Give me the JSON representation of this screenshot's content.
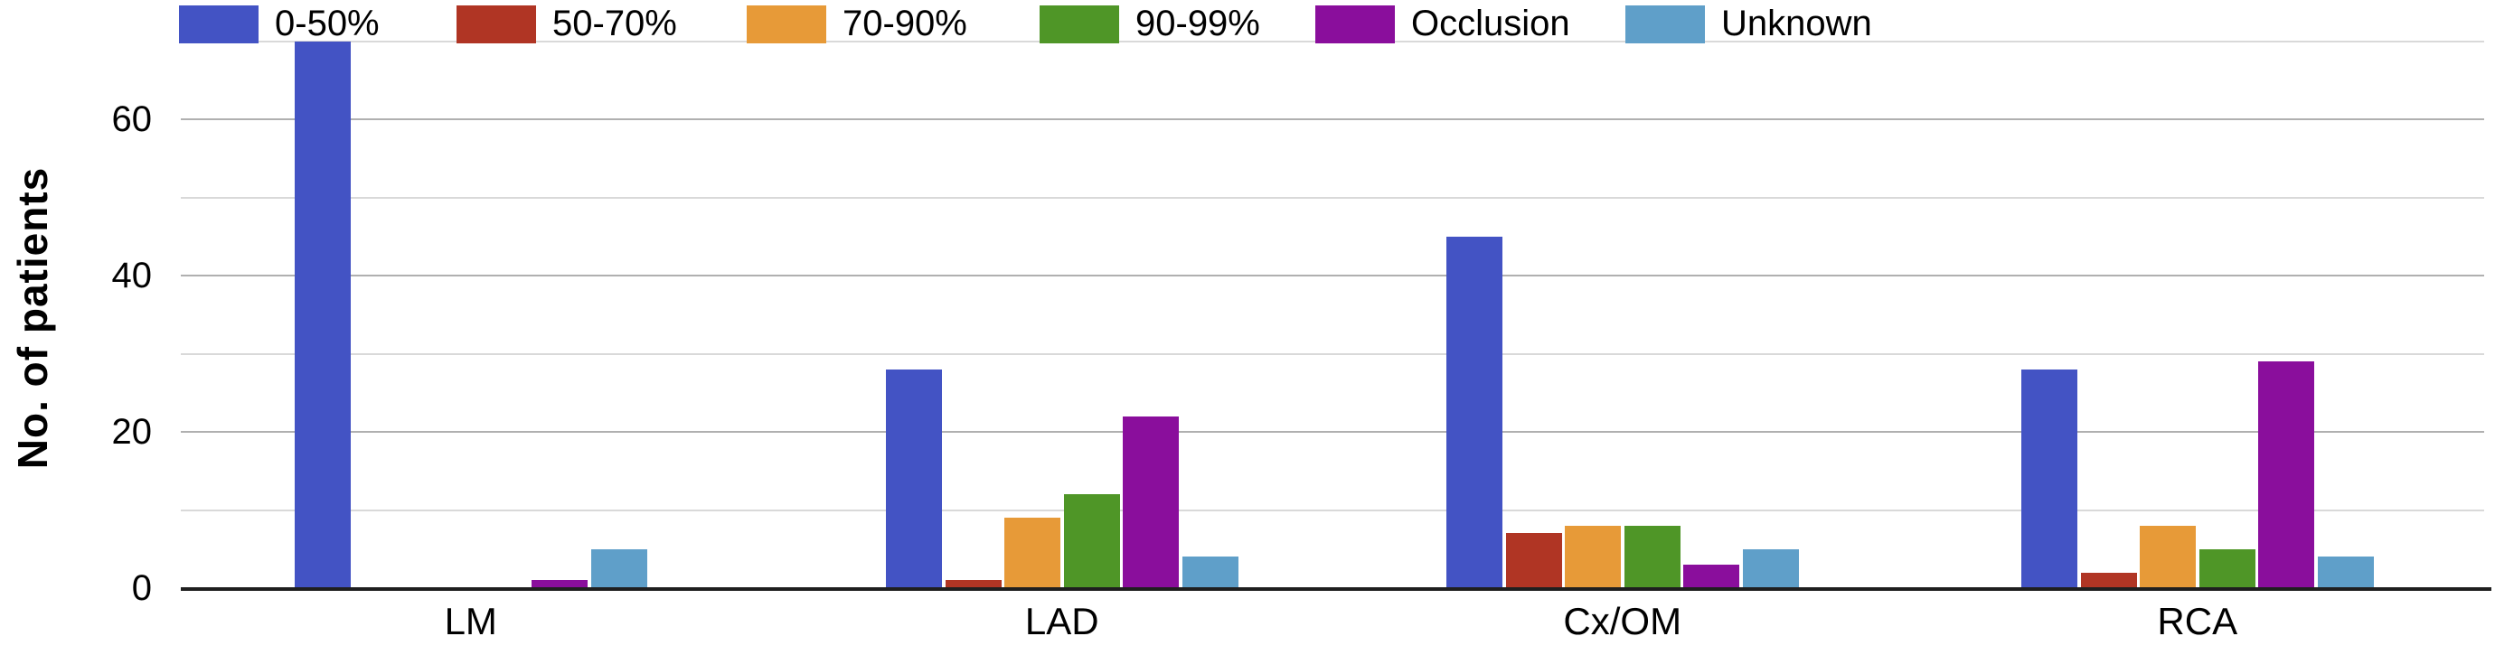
{
  "chart_data": {
    "type": "bar",
    "title": "",
    "ylabel": "No. of patients",
    "xlabel": "",
    "categories": [
      "LM",
      "LAD",
      "Cx/OM",
      "RCA"
    ],
    "series": [
      {
        "name": "0-50%",
        "color": "#4353c4",
        "values": [
          70,
          28,
          45,
          28
        ]
      },
      {
        "name": "50-70%",
        "color": "#b03524",
        "values": [
          0,
          1,
          7,
          2
        ]
      },
      {
        "name": "70-90%",
        "color": "#e79a38",
        "values": [
          0,
          9,
          8,
          8
        ]
      },
      {
        "name": "90-99%",
        "color": "#4f9627",
        "values": [
          0,
          12,
          8,
          5
        ]
      },
      {
        "name": "Occlusion",
        "color": "#8a0e9c",
        "values": [
          1,
          22,
          3,
          29
        ]
      },
      {
        "name": "Unknown",
        "color": "#5f9fc9",
        "values": [
          5,
          4,
          5,
          4
        ]
      }
    ],
    "yticks": [
      0,
      20,
      40,
      60
    ],
    "ylim": [
      0,
      72
    ],
    "grid": {
      "on": true,
      "interval": 10,
      "max_line": 70,
      "major_color": "#b0b0b0",
      "minor_color": "#d9d9d9"
    },
    "axis_color": "#1f1f1f",
    "text_color": "#000000",
    "legend_position": "top"
  }
}
